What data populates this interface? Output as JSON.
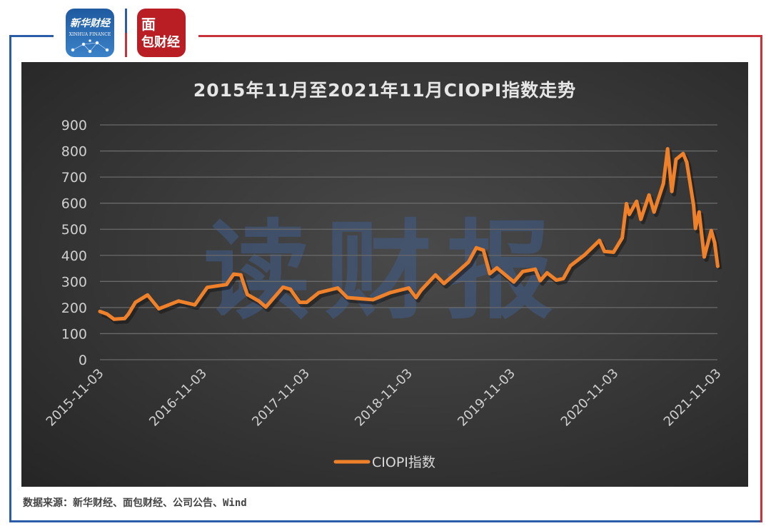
{
  "header": {
    "logo_left": "新华财经 XINHUA FINANCE",
    "logo_right": "面包财经"
  },
  "colors": {
    "frame_blue": "#2a5ca8",
    "frame_red": "#c8323a",
    "line": "#f0812b",
    "panel": "#3a3a3a"
  },
  "watermark": "读财报",
  "source": "数据来源：新华财经、面包财经、公司公告、Wind",
  "chart_data": {
    "type": "line",
    "title": "2015年11月至2021年11月CIOPI指数走势",
    "xlabel": "",
    "ylabel": "",
    "ylim": [
      0,
      900
    ],
    "yticks": [
      "0",
      "100",
      "200",
      "300",
      "400",
      "500",
      "600",
      "700",
      "800",
      "900"
    ],
    "xticks": [
      "2015-11-03",
      "2016-11-03",
      "2017-11-03",
      "2018-11-03",
      "2019-11-03",
      "2020-11-03",
      "2021-11-03"
    ],
    "grid": true,
    "legend_position": "bottom",
    "series": [
      {
        "name": "CIOPI指数",
        "color": "#f0812b",
        "points": [
          [
            "2015-11-03",
            185
          ],
          [
            "2015-11-28",
            175
          ],
          [
            "2015-12-23",
            155
          ],
          [
            "2016-01-30",
            158
          ],
          [
            "2016-02-12",
            175
          ],
          [
            "2016-03-08",
            220
          ],
          [
            "2016-04-20",
            248
          ],
          [
            "2016-05-30",
            195
          ],
          [
            "2016-08-08",
            225
          ],
          [
            "2016-10-05",
            210
          ],
          [
            "2016-11-18",
            277
          ],
          [
            "2017-01-25",
            288
          ],
          [
            "2017-02-20",
            328
          ],
          [
            "2017-03-17",
            325
          ],
          [
            "2017-04-09",
            250
          ],
          [
            "2017-05-20",
            225
          ],
          [
            "2017-06-14",
            202
          ],
          [
            "2017-08-14",
            278
          ],
          [
            "2017-09-09",
            270
          ],
          [
            "2017-10-12",
            220
          ],
          [
            "2017-11-06",
            220
          ],
          [
            "2017-12-19",
            257
          ],
          [
            "2018-02-24",
            275
          ],
          [
            "2018-03-30",
            238
          ],
          [
            "2018-06-29",
            230
          ],
          [
            "2018-08-29",
            257
          ],
          [
            "2018-11-03",
            275
          ],
          [
            "2018-11-29",
            238
          ],
          [
            "2018-12-16",
            265
          ],
          [
            "2019-02-06",
            325
          ],
          [
            "2019-03-08",
            292
          ],
          [
            "2019-04-21",
            333
          ],
          [
            "2019-06-03",
            374
          ],
          [
            "2019-07-01",
            429
          ],
          [
            "2019-07-26",
            420
          ],
          [
            "2019-08-18",
            330
          ],
          [
            "2019-09-12",
            352
          ],
          [
            "2019-11-11",
            298
          ],
          [
            "2019-12-13",
            338
          ],
          [
            "2020-01-26",
            347
          ],
          [
            "2020-02-13",
            303
          ],
          [
            "2020-03-08",
            333
          ],
          [
            "2020-04-10",
            305
          ],
          [
            "2020-05-05",
            311
          ],
          [
            "2020-05-30",
            360
          ],
          [
            "2020-07-20",
            402
          ],
          [
            "2020-09-10",
            457
          ],
          [
            "2020-09-28",
            415
          ],
          [
            "2020-10-30",
            412
          ],
          [
            "2020-11-30",
            467
          ],
          [
            "2020-12-15",
            598
          ],
          [
            "2020-12-25",
            557
          ],
          [
            "2021-01-20",
            607
          ],
          [
            "2021-02-04",
            538
          ],
          [
            "2021-03-05",
            631
          ],
          [
            "2021-03-23",
            566
          ],
          [
            "2021-04-25",
            675
          ],
          [
            "2021-05-10",
            808
          ],
          [
            "2021-05-25",
            645
          ],
          [
            "2021-06-09",
            768
          ],
          [
            "2021-07-04",
            790
          ],
          [
            "2021-07-17",
            757
          ],
          [
            "2021-08-10",
            593
          ],
          [
            "2021-08-17",
            503
          ],
          [
            "2021-08-30",
            566
          ],
          [
            "2021-09-17",
            394
          ],
          [
            "2021-10-12",
            495
          ],
          [
            "2021-10-24",
            448
          ],
          [
            "2021-11-04",
            358
          ]
        ]
      }
    ]
  }
}
